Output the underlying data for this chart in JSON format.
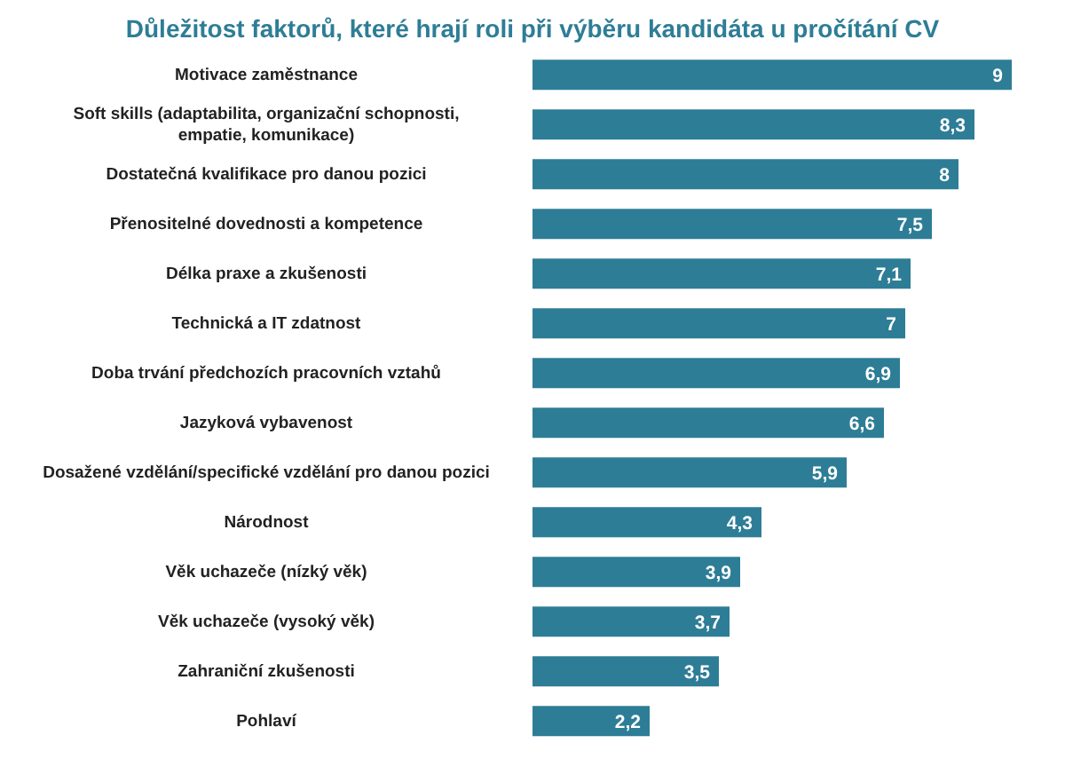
{
  "chart_data": {
    "type": "bar",
    "orientation": "horizontal",
    "title": "Důležitost faktorů, které hrají roli při výběru kandidáta u pročítání CV",
    "categories": [
      "Motivace zaměstnance",
      "Soft skills (adaptabilita, organizační schopnosti, empatie, komunikace)",
      "Dostatečná kvalifikace pro danou pozici",
      "Přenositelné dovednosti a kompetence",
      "Délka praxe a zkušenosti",
      "Technická a IT zdatnost",
      "Doba trvání předchozích pracovních vztahů",
      "Jazyková vybavenost",
      "Dosažené vzdělání/specifické vzdělání pro danou pozici",
      "Národnost",
      "Věk uchazeče (nízký věk)",
      "Věk uchazeče (vysoký věk)",
      "Zahraniční zkušenosti",
      "Pohlaví"
    ],
    "values": [
      9,
      8.3,
      8,
      7.5,
      7.1,
      7,
      6.9,
      6.6,
      5.9,
      4.3,
      3.9,
      3.7,
      3.5,
      2.2
    ],
    "value_labels": [
      "9",
      "8,3",
      "8",
      "7,5",
      "7,1",
      "7",
      "6,9",
      "6,6",
      "5,9",
      "4,3",
      "3,9",
      "3,7",
      "3,5",
      "2,2"
    ],
    "color": "#2e7d96"
  }
}
